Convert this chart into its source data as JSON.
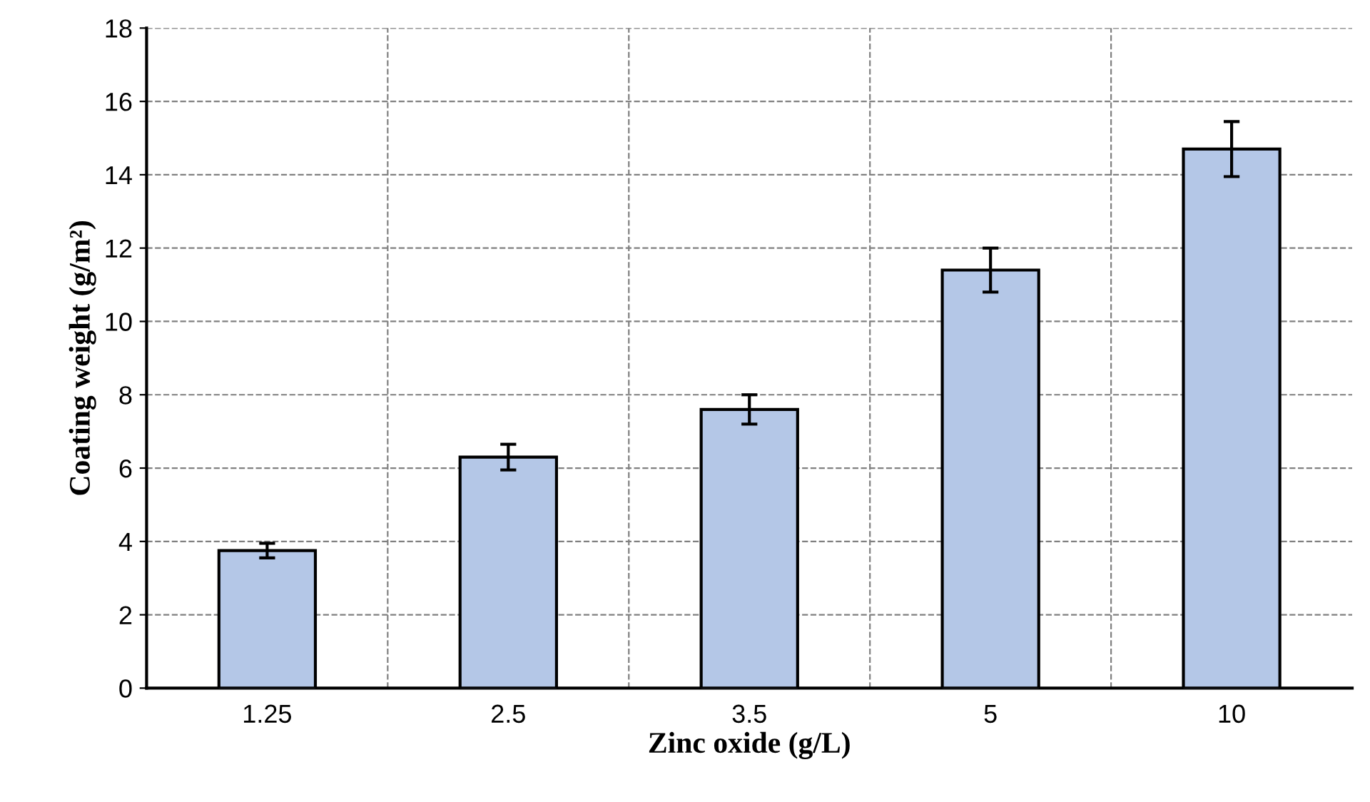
{
  "chart_data": {
    "type": "bar",
    "xlabel": "Zinc oxide (g/L)",
    "ylabel": "Coating weight (g/m²)",
    "categories": [
      "1.25",
      "2.5",
      "3.5",
      "5",
      "10"
    ],
    "values": [
      3.75,
      6.3,
      7.6,
      11.4,
      14.7
    ],
    "errors": [
      0.2,
      0.35,
      0.4,
      0.6,
      0.75
    ],
    "color": "#b4c7e7",
    "ylim": [
      0,
      18
    ],
    "yticks": [
      0,
      2,
      4,
      6,
      8,
      10,
      12,
      14,
      16,
      18
    ],
    "grid": true
  }
}
